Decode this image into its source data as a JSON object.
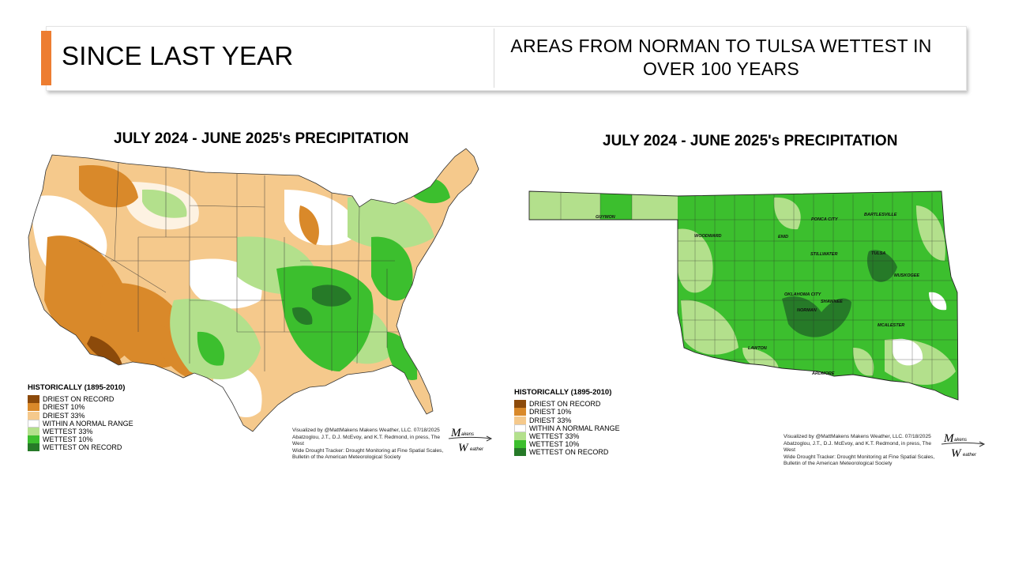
{
  "header": {
    "title": "SINCE LAST YEAR",
    "subtitle": "AREAS FROM NORMAN TO TULSA WETTEST IN OVER 100 YEARS",
    "accent_color": "#ed7d31"
  },
  "us_map": {
    "title": "JULY 2024 - JUNE 2025's PRECIPITATION"
  },
  "ok_map": {
    "title": "JULY 2024 - JUNE 2025's PRECIPITATION",
    "cities": [
      {
        "name": "GUYMON"
      },
      {
        "name": "WOODWARD"
      },
      {
        "name": "PONCA CITY"
      },
      {
        "name": "BARTLESVILLE"
      },
      {
        "name": "ENID"
      },
      {
        "name": "STILLWATER"
      },
      {
        "name": "TULSA"
      },
      {
        "name": "MUSKOGEE"
      },
      {
        "name": "OKLAHOMA CITY"
      },
      {
        "name": "SHAWNEE"
      },
      {
        "name": "NORMAN"
      },
      {
        "name": "MCALESTER"
      },
      {
        "name": "LAWTON"
      },
      {
        "name": "ARDMORE"
      }
    ]
  },
  "legend": {
    "heading": "HISTORICALLY (1895-2010)",
    "items": [
      {
        "label": "DRIEST ON RECORD",
        "color": "#8c4a0a"
      },
      {
        "label": "DRIEST 10%",
        "color": "#d9892a"
      },
      {
        "label": "DRIEST 33%",
        "color": "#f5c98c"
      },
      {
        "label": "WITHIN A NORMAL RANGE",
        "color": "#ffffff"
      },
      {
        "label": "WETTEST 33%",
        "color": "#b3e08c"
      },
      {
        "label": "WETTEST 10%",
        "color": "#3cbf2e"
      },
      {
        "label": "WETTEST ON RECORD",
        "color": "#267a28"
      }
    ]
  },
  "credit": {
    "line1": "Visualized by @MattMakens Makens Weather, LLC. 07/18/2025",
    "line2": "Abatzoglou, J.T., D.J. McEvoy, and K.T. Redmond, in press, The West",
    "line3": "Wide Drought Tracker: Drought Monitoring at Fine Spatial Scales,",
    "line4": "Bulletin of the American Meteorological Society"
  },
  "logo": {
    "top": "akens",
    "bottom": "eather"
  }
}
